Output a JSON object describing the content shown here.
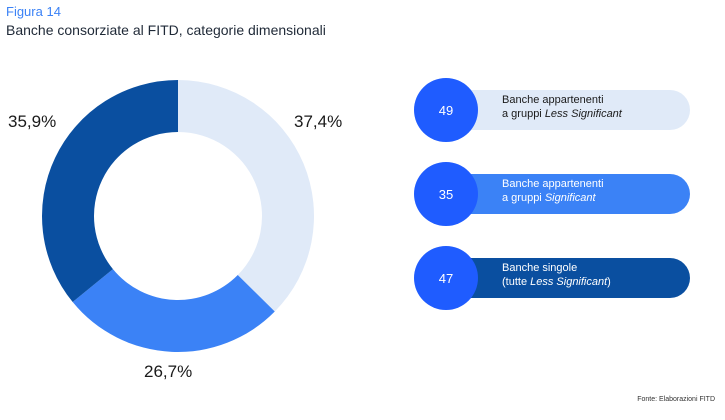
{
  "figure": {
    "label": "Figura 14",
    "title": "Banche consorziate al FITD, categorie dimensionali",
    "source": "Fonte: Elaborazioni FITD"
  },
  "chart_data": {
    "type": "pie",
    "donut": true,
    "title": "Banche consorziate al FITD, categorie dimensionali",
    "colors": {
      "accent": "#3b82f6",
      "circle": "#1f5cff"
    },
    "series": [
      {
        "count": "49",
        "label_line1": "Banche appartenenti",
        "label_prefix": "a gruppi ",
        "label_italic": "Less Significant",
        "label_suffix": "",
        "value": 37.4,
        "value_label": "37,4%",
        "color": "#e0eaf8",
        "text_color": "#1a1a1a"
      },
      {
        "count": "35",
        "label_line1": "Banche appartenenti",
        "label_prefix": "a gruppi ",
        "label_italic": "Significant",
        "label_suffix": "",
        "value": 26.7,
        "value_label": "26,7%",
        "color": "#3b82f6",
        "text_color": "#ffffff"
      },
      {
        "count": "47",
        "label_line1": "Banche singole",
        "label_prefix": "(tutte ",
        "label_italic": "Less Significant",
        "label_suffix": ")",
        "value": 35.9,
        "value_label": "35,9%",
        "color": "#0a4fa0",
        "text_color": "#ffffff"
      }
    ]
  }
}
